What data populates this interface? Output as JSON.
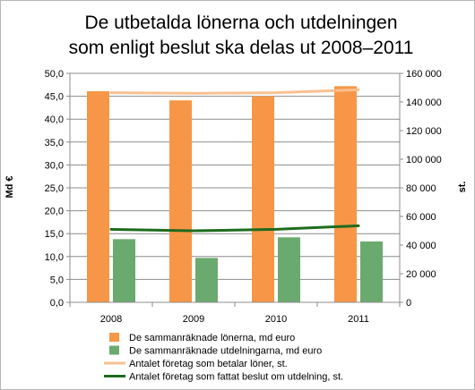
{
  "chart_data": {
    "type": "bar",
    "title_lines": [
      "De utbetalda lönerna och utdelningen",
      "som enligt beslut ska delas ut 2008–2011"
    ],
    "categories": [
      "2008",
      "2009",
      "2010",
      "2011"
    ],
    "ylabel": "Md €",
    "ylabel2": "st.",
    "ylim": [
      0,
      50
    ],
    "ylim2": [
      0,
      160000
    ],
    "yticks": [
      "0,0",
      "5,0",
      "10,0",
      "15,0",
      "20,0",
      "25,0",
      "30,0",
      "35,0",
      "40,0",
      "45,0",
      "50,0"
    ],
    "yticks2": [
      "0",
      "20 000",
      "40 000",
      "60 000",
      "80 000",
      "100 000",
      "120 000",
      "140 000",
      "160 000"
    ],
    "grid": true,
    "legend_position": "bottom",
    "series": [
      {
        "name": "De sammanräknade lönerna, md euro",
        "kind": "bar",
        "axis": "left",
        "color": "#f79646",
        "values": [
          46.1,
          44.1,
          45.0,
          47.2
        ]
      },
      {
        "name": "De sammanräknade utdelningarna, md euro",
        "kind": "bar",
        "axis": "left",
        "color": "#6aaa6e",
        "values": [
          13.8,
          9.7,
          14.2,
          13.3
        ]
      },
      {
        "name": "Antalet företag som betalar löner, st.",
        "kind": "line",
        "axis": "right",
        "color": "#fac090",
        "values": [
          146500,
          146000,
          146500,
          148500
        ]
      },
      {
        "name": "Antalet företag som fattat beslut om utdelning, st.",
        "kind": "line",
        "axis": "right",
        "color": "#1e6b1e",
        "values": [
          51000,
          50000,
          51000,
          53500
        ]
      }
    ]
  }
}
